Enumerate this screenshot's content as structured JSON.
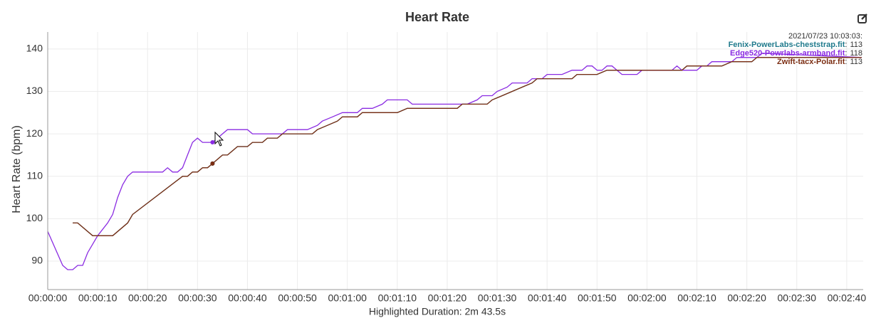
{
  "chart_data": {
    "type": "line",
    "title": "Heart Rate",
    "x_label": "Highlighted Duration: 2m 43.5s",
    "y_label": "Heart Rate (bpm)",
    "xlim": [
      0,
      163.3
    ],
    "ylim": [
      83.3,
      144
    ],
    "xticks": [
      {
        "value": 0,
        "label": "00:00:00"
      },
      {
        "value": 10,
        "label": "00:00:10"
      },
      {
        "value": 20,
        "label": "00:00:20"
      },
      {
        "value": 30,
        "label": "00:00:30"
      },
      {
        "value": 40,
        "label": "00:00:40"
      },
      {
        "value": 50,
        "label": "00:00:50"
      },
      {
        "value": 60,
        "label": "00:01:00"
      },
      {
        "value": 70,
        "label": "00:01:10"
      },
      {
        "value": 80,
        "label": "00:01:20"
      },
      {
        "value": 90,
        "label": "00:01:30"
      },
      {
        "value": 100,
        "label": "00:01:40"
      },
      {
        "value": 110,
        "label": "00:01:50"
      },
      {
        "value": 120,
        "label": "00:02:00"
      },
      {
        "value": 130,
        "label": "00:02:10"
      },
      {
        "value": 140,
        "label": "00:02:20"
      },
      {
        "value": 150,
        "label": "00:02:30"
      },
      {
        "value": 160,
        "label": "00:02:40"
      }
    ],
    "yticks": [
      90,
      100,
      110,
      120,
      130,
      140
    ],
    "grid": true,
    "series": [
      {
        "name": "Fenix-PowerLabs-cheststrap.fit",
        "color": "#1f7a8c",
        "x": [
          5,
          6,
          9,
          13,
          16,
          17,
          27,
          28,
          29,
          30,
          31,
          32,
          33,
          34,
          35,
          36,
          37,
          38,
          40,
          41,
          43,
          44,
          46,
          47,
          53,
          54,
          56,
          58,
          59,
          62,
          63,
          70,
          72,
          82,
          83,
          88,
          89,
          91,
          93,
          95,
          97,
          98,
          105,
          106,
          110,
          112,
          127,
          128,
          135,
          137,
          141,
          142,
          163
        ],
        "values": [
          99,
          99,
          96,
          96,
          99,
          101,
          110,
          110,
          111,
          111,
          112,
          112,
          113,
          114,
          115,
          115,
          116,
          117,
          117,
          118,
          118,
          119,
          119,
          120,
          120,
          121,
          122,
          123,
          124,
          124,
          125,
          125,
          126,
          126,
          127,
          127,
          128,
          129,
          130,
          131,
          132,
          133,
          133,
          134,
          134,
          135,
          135,
          136,
          136,
          137,
          137,
          138,
          138
        ]
      },
      {
        "name": "Edge520-Powrlabs-armband.fit",
        "color": "#8a2be2",
        "x": [
          0,
          3,
          4,
          5,
          6,
          7,
          8,
          10,
          12,
          13,
          14,
          15,
          16,
          17,
          23,
          24,
          25,
          26,
          27,
          28,
          29,
          30,
          31,
          33,
          34,
          35,
          36,
          40,
          41,
          47,
          48,
          52,
          54,
          55,
          57,
          59,
          62,
          63,
          65,
          67,
          68,
          72,
          73,
          84,
          86,
          87,
          89,
          90,
          92,
          93,
          96,
          97,
          99,
          100,
          103,
          105,
          107,
          108,
          109,
          110,
          111,
          112,
          113,
          114,
          115,
          118,
          119,
          125,
          126,
          127,
          130,
          131,
          132,
          133,
          137,
          138,
          142,
          143,
          163
        ],
        "values": [
          97,
          89,
          88,
          88,
          89,
          89,
          92,
          96,
          99,
          101,
          105,
          108,
          110,
          111,
          111,
          112,
          111,
          111,
          112,
          115,
          118,
          119,
          118,
          118,
          119,
          120,
          121,
          121,
          120,
          120,
          121,
          121,
          122,
          123,
          124,
          125,
          125,
          126,
          126,
          127,
          128,
          128,
          127,
          127,
          128,
          129,
          129,
          130,
          131,
          132,
          132,
          133,
          133,
          134,
          134,
          135,
          135,
          136,
          136,
          135,
          135,
          136,
          136,
          135,
          134,
          134,
          135,
          135,
          136,
          135,
          135,
          136,
          136,
          137,
          137,
          138,
          138,
          139,
          138
        ]
      },
      {
        "name": "Zwift-tacx-Polar.fit",
        "color": "#7b2d12",
        "x": [
          5,
          6,
          9,
          13,
          16,
          17,
          27,
          28,
          29,
          30,
          31,
          32,
          33,
          34,
          35,
          36,
          37,
          38,
          40,
          41,
          43,
          44,
          46,
          47,
          53,
          54,
          56,
          58,
          59,
          62,
          63,
          70,
          72,
          82,
          83,
          88,
          89,
          91,
          93,
          95,
          97,
          98,
          105,
          106,
          110,
          112,
          127,
          128,
          135,
          137,
          141,
          142,
          163
        ],
        "values": [
          99,
          99,
          96,
          96,
          99,
          101,
          110,
          110,
          111,
          111,
          112,
          112,
          113,
          114,
          115,
          115,
          116,
          117,
          117,
          118,
          118,
          119,
          119,
          120,
          120,
          121,
          122,
          123,
          124,
          124,
          125,
          125,
          126,
          126,
          127,
          127,
          128,
          129,
          130,
          131,
          132,
          133,
          133,
          134,
          134,
          135,
          135,
          136,
          136,
          137,
          137,
          138,
          138
        ]
      }
    ],
    "readout": {
      "time": "2021/07/23 10:03:03:",
      "separator": ":",
      "x": 33,
      "values": [
        113,
        118,
        113
      ]
    }
  }
}
